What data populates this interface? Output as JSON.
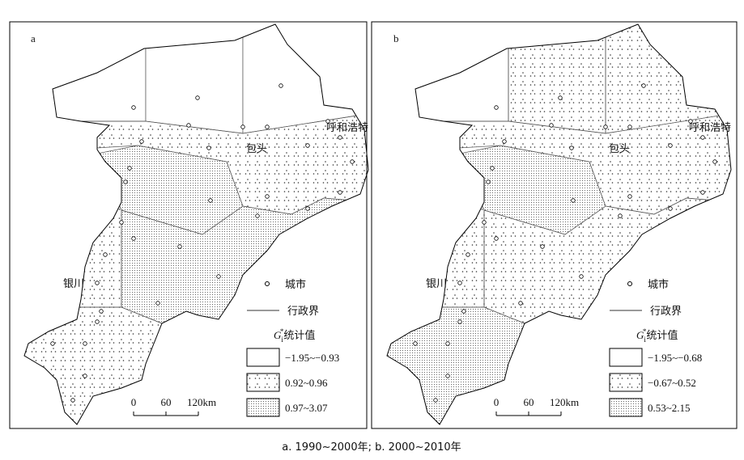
{
  "panels": [
    {
      "label": "a",
      "classes": [
        "−1.95~−0.93",
        "0.92~0.96",
        "0.97~3.07"
      ]
    },
    {
      "label": "b",
      "classes": [
        "−1.95~−0.68",
        "−0.67~0.52",
        "0.53~2.15"
      ]
    }
  ],
  "cities": [
    "呼和浩特",
    "包头",
    "银川"
  ],
  "legend": {
    "city": "城市",
    "boundary": "行政界",
    "title": {
      "symbol": "G",
      "subscript": "i",
      "superscript": "*",
      "text": "统计值"
    }
  },
  "scale_bar": [
    "0",
    "60",
    "120km"
  ],
  "caption": "a. 1990~2000年; b. 2000~2010年"
}
